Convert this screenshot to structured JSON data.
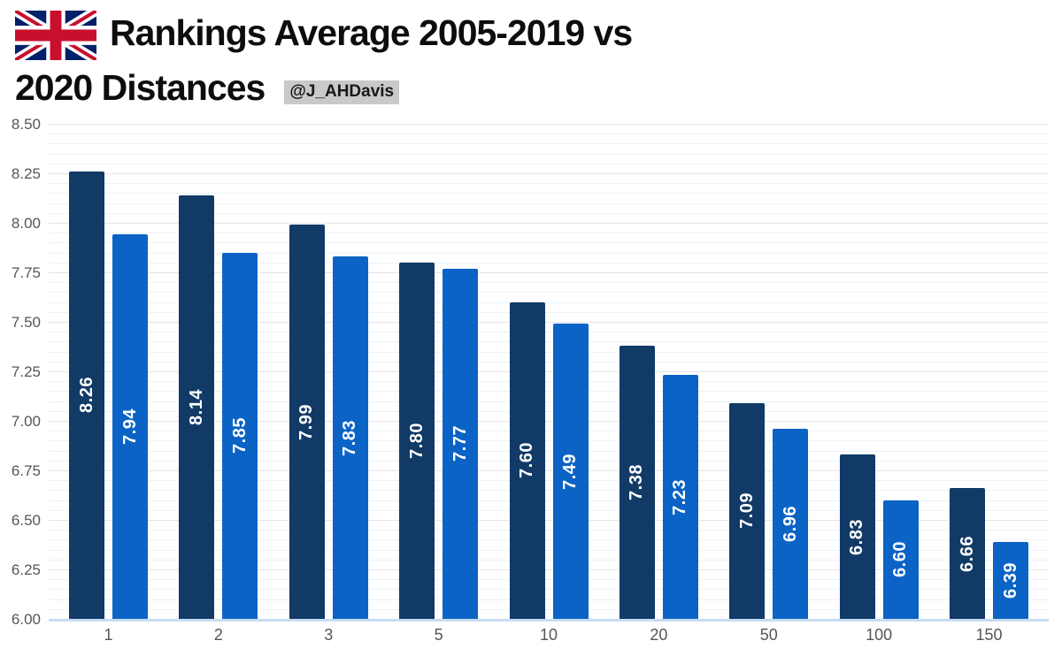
{
  "header": {
    "title_line1": "Rankings Average 2005-2019 vs",
    "title_line2": "2020 Distances",
    "handle": "@J_AHDavis"
  },
  "icons": {
    "flag": "uk-flag"
  },
  "colors": {
    "series_dark": "#113a66",
    "series_light": "#0b63c5",
    "bar_label_text": "#ffffff",
    "axis_text": "#55565b",
    "major_grid": "#e4e4e6",
    "minor_grid": "#e9f2fc",
    "baseline": "#c6dcf4",
    "badge_bg": "#c9c9c9",
    "title_text": "#0d0d0d",
    "flag_blue": "#012169",
    "flag_red": "#C8102E"
  },
  "chart_data": {
    "type": "bar",
    "title": "Rankings Average 2005-2019 vs 2020 Distances",
    "categories": [
      "1",
      "2",
      "3",
      "5",
      "10",
      "20",
      "50",
      "100",
      "150"
    ],
    "series": [
      {
        "name": "2005-2019",
        "color": "#113a66",
        "values": [
          8.26,
          8.14,
          7.99,
          7.8,
          7.6,
          7.38,
          7.09,
          6.83,
          6.66
        ]
      },
      {
        "name": "2020",
        "color": "#0b63c5",
        "values": [
          7.94,
          7.85,
          7.83,
          7.77,
          7.49,
          7.23,
          6.96,
          6.6,
          6.39
        ]
      }
    ],
    "xlabel": "",
    "ylabel": "",
    "ylim": [
      6.0,
      8.5
    ],
    "y_major_step": 0.25,
    "y_minor_step": 0.05,
    "y_tick_labels": [
      "6.00",
      "6.25",
      "6.50",
      "6.75",
      "7.00",
      "7.25",
      "7.50",
      "7.75",
      "8.00",
      "8.25",
      "8.50"
    ],
    "grid": "on",
    "legend": "none",
    "bar_value_labels": "rotated-90-white-inside"
  }
}
